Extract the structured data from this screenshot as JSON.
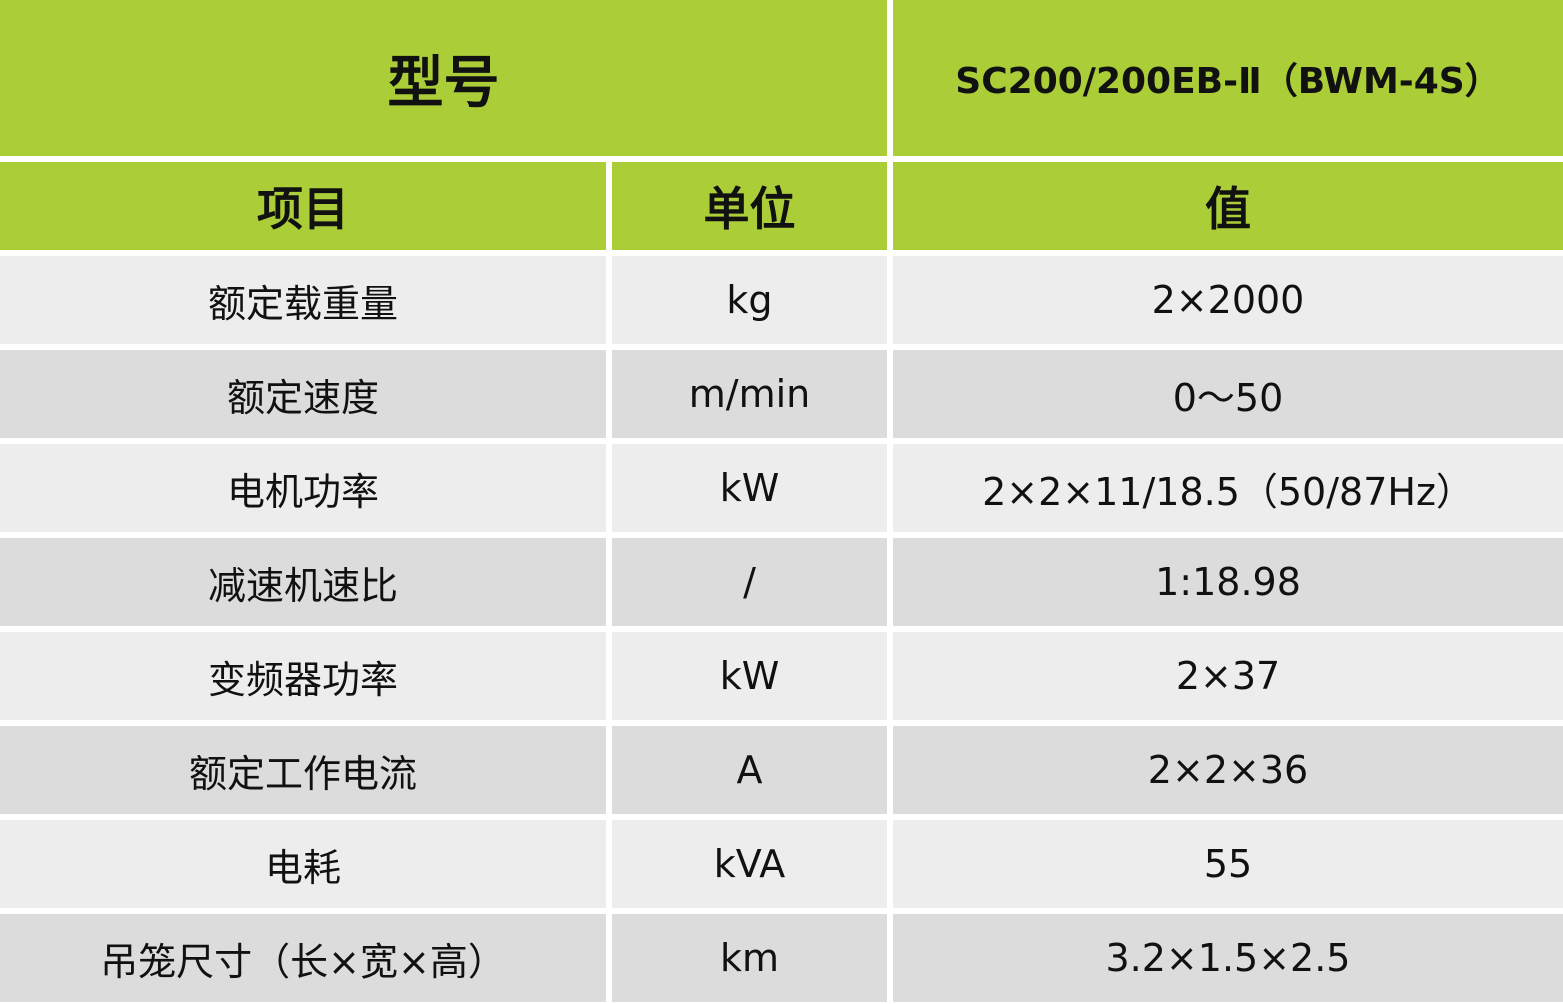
{
  "header": {
    "model_label": "型号",
    "model_value": "SC200/200EB-Ⅱ（BWM-4S）",
    "col_item": "项目",
    "col_unit": "单位",
    "col_value": "值"
  },
  "colors": {
    "header_green": "#abce38",
    "row_light": "#ededed",
    "row_dark": "#dcdcdc"
  },
  "rows": [
    {
      "item": "额定载重量",
      "unit": "kg",
      "value": "2×2000"
    },
    {
      "item": "额定速度",
      "unit": "m/min",
      "value": "0～50"
    },
    {
      "item": "电机功率",
      "unit": "kW",
      "value": "2×2×11/18.5（50/87Hz）"
    },
    {
      "item": "减速机速比",
      "unit": "/",
      "value": "1:18.98"
    },
    {
      "item": "变频器功率",
      "unit": "kW",
      "value": "2×37"
    },
    {
      "item": "额定工作电流",
      "unit": "A",
      "value": "2×2×36"
    },
    {
      "item": "电耗",
      "unit": "kVA",
      "value": "55"
    },
    {
      "item": "吊笼尺寸（长×宽×高）",
      "unit": "km",
      "value": "3.2×1.5×2.5"
    }
  ]
}
